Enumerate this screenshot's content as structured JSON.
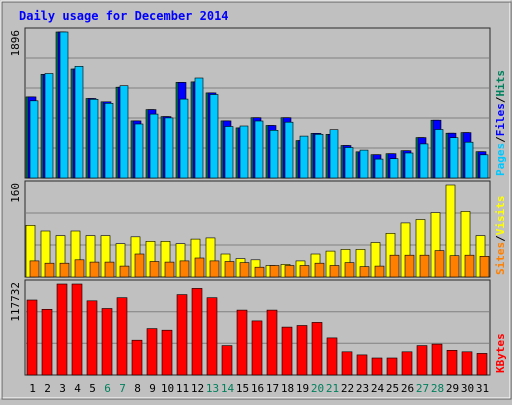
{
  "chart_data": {
    "type": "bar",
    "title": "Daily usage for December 2014",
    "x": [
      1,
      2,
      3,
      4,
      5,
      6,
      7,
      8,
      9,
      10,
      11,
      12,
      13,
      14,
      15,
      16,
      17,
      18,
      19,
      20,
      21,
      22,
      23,
      24,
      25,
      26,
      27,
      28,
      29,
      30,
      31
    ],
    "x_tick_labels": [
      "1",
      "2",
      "3",
      "4",
      "5",
      "6",
      "7",
      "8",
      "9",
      "10",
      "11",
      "12",
      "13",
      "14",
      "15",
      "16",
      "17",
      "18",
      "19",
      "20",
      "21",
      "22",
      "23",
      "24",
      "25",
      "26",
      "27",
      "28",
      "29",
      "30",
      "31"
    ],
    "weekend_days": [
      6,
      7,
      13,
      14,
      20,
      21,
      27,
      28
    ],
    "panels": [
      {
        "id": "pages-files-hits",
        "y_max_label": "1896",
        "ylim": [
          0,
          1896
        ],
        "series_label_parts": [
          "Pages",
          "Files",
          "Hits"
        ],
        "series": [
          {
            "name": "Hits",
            "color": "#00805c",
            "values": [
              1053,
              1347,
              1896,
              1416,
              1032,
              990,
              1179,
              741,
              888,
              798,
              1242,
              1248,
              1105,
              741,
              651,
              783,
              682,
              783,
              486,
              579,
              566,
              422,
              340,
              302,
              316,
              355,
              524,
              750,
              582,
              590,
              342
            ]
          },
          {
            "name": "Files",
            "color": "#0000ff",
            "values": [
              1053,
              1347,
              1896,
              1416,
              1032,
              990,
              1179,
              741,
              888,
              798,
              1242,
              1248,
              1105,
              741,
              651,
              783,
              682,
              783,
              486,
              579,
              566,
              422,
              340,
              302,
              316,
              355,
              524,
              750,
              582,
              590,
              342
            ]
          },
          {
            "name": "Pages",
            "color": "#00c8ff",
            "values": [
              1002,
              1357,
              1896,
              1450,
              1022,
              970,
              1198,
              701,
              830,
              780,
              1024,
              1298,
              1085,
              669,
              675,
              740,
              619,
              725,
              544,
              568,
              627,
              396,
              362,
              245,
              251,
              325,
              443,
              630,
              523,
              465,
              301
            ]
          }
        ]
      },
      {
        "id": "sites-visits",
        "y_max_label": "160",
        "ylim": [
          0,
          160
        ],
        "series_label_parts": [
          "Sites",
          "Visits"
        ],
        "series": [
          {
            "name": "Visits",
            "color": "#ffff00",
            "values": [
              90,
              80,
              72,
              80,
              72,
              72,
              58,
              70,
              62,
              62,
              58,
              66,
              68,
              40,
              32,
              30,
              20,
              22,
              28,
              40,
              45,
              48,
              48,
              60,
              76,
              94,
              100,
              112,
              160,
              114,
              72
            ]
          },
          {
            "name": "Sites",
            "color": "#ff8000",
            "values": [
              28,
              24,
              24,
              30,
              26,
              26,
              19,
              40,
              27,
              26,
              28,
              33,
              28,
              27,
              25,
              17,
              20,
              20,
              20,
              24,
              20,
              25,
              18,
              19,
              38,
              38,
              38,
              46,
              37,
              38,
              36
            ]
          }
        ]
      },
      {
        "id": "kbytes",
        "y_max_label": "117732",
        "ylim": [
          0,
          117732
        ],
        "series_label_parts": [
          "KBytes"
        ],
        "series": [
          {
            "name": "KBytes",
            "color": "#ff0000",
            "values": [
              97000,
              85000,
              117732,
              117732,
              96000,
              86000,
              100000,
              45000,
              60000,
              58000,
              104000,
              112000,
              100000,
              38000,
              84000,
              70000,
              84000,
              62000,
              64000,
              68000,
              48000,
              30000,
              26000,
              22000,
              22000,
              30000,
              38000,
              40000,
              32000,
              30000,
              28000
            ]
          }
        ]
      }
    ],
    "legend_placement": "right-vertical",
    "grid": true
  },
  "colors": {
    "background": "#c0c0c0",
    "title": "#0000ff",
    "gridline": "#808080",
    "weekday_label": "#000000",
    "weekend_label": "#00805c",
    "separator": "#2a2a2a"
  }
}
